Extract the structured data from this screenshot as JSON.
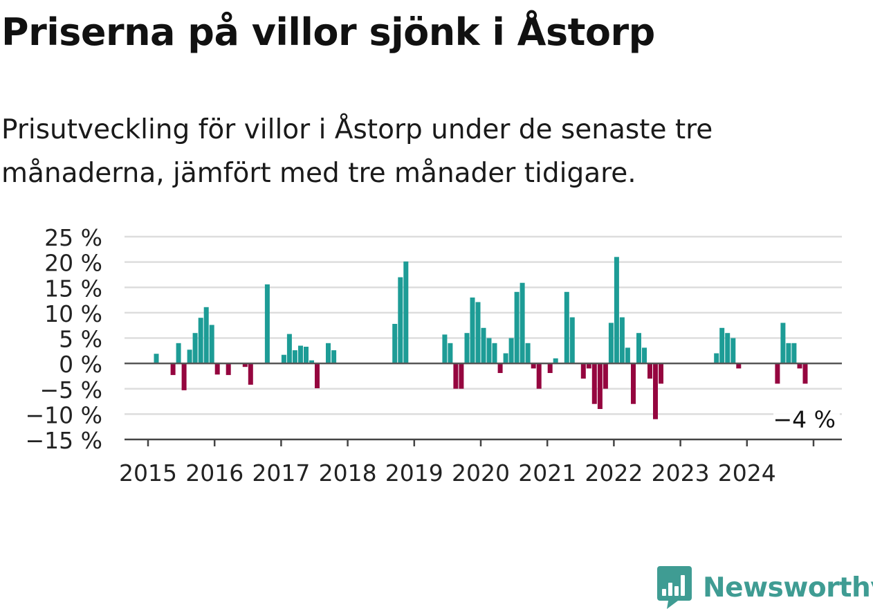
{
  "header": {
    "title": "Priserna på villor sjönk i Åstorp",
    "subtitle": "Prisutveckling för villor i Åstorp under de senaste tre månaderna, jämfört med tre månader tidigare."
  },
  "brand": {
    "name": "Newsworthy",
    "color": "#3f9c93",
    "logo_icon": "bar-chart-speech-bubble-icon"
  },
  "colors": {
    "positive": "#1d9c96",
    "negative": "#95063f",
    "grid": "#dddddd",
    "axis": "#444444",
    "text": "#222222"
  },
  "chart_data": {
    "type": "bar",
    "title": "Priserna på villor sjönk i Åstorp",
    "subtitle": "Prisutveckling för villor i Åstorp under de senaste tre månaderna, jämfört med tre månader tidigare.",
    "xlabel": "",
    "ylabel": "",
    "ylim": [
      -15,
      25
    ],
    "yticks": [
      25,
      20,
      15,
      10,
      5,
      0,
      -5,
      -10,
      -15
    ],
    "ytick_labels": [
      "25 %",
      "20 %",
      "15 %",
      "10 %",
      "5 %",
      "0 %",
      "−5 %",
      "−10 %",
      "−15 %"
    ],
    "xtick_labels": [
      "2015",
      "2016",
      "2017",
      "2018",
      "2019",
      "2020",
      "2021",
      "2022",
      "2023",
      "2024"
    ],
    "x_unit": "month",
    "grid": true,
    "legend": "none",
    "last_value_label": "−4 %",
    "points": [
      {
        "date": "2015-01",
        "value": null
      },
      {
        "date": "2015-02",
        "value": 1.9
      },
      {
        "date": "2015-03",
        "value": null
      },
      {
        "date": "2015-04",
        "value": null
      },
      {
        "date": "2015-05",
        "value": -2.3
      },
      {
        "date": "2015-06",
        "value": 4.0
      },
      {
        "date": "2015-07",
        "value": -5.3
      },
      {
        "date": "2015-08",
        "value": 2.7
      },
      {
        "date": "2015-09",
        "value": 6.0
      },
      {
        "date": "2015-10",
        "value": 9.0
      },
      {
        "date": "2015-11",
        "value": 11.1
      },
      {
        "date": "2015-12",
        "value": 7.6
      },
      {
        "date": "2016-01",
        "value": -2.2
      },
      {
        "date": "2016-02",
        "value": null
      },
      {
        "date": "2016-03",
        "value": -2.3
      },
      {
        "date": "2016-04",
        "value": null
      },
      {
        "date": "2016-05",
        "value": null
      },
      {
        "date": "2016-06",
        "value": -0.7
      },
      {
        "date": "2016-07",
        "value": -4.2
      },
      {
        "date": "2016-08",
        "value": null
      },
      {
        "date": "2016-09",
        "value": null
      },
      {
        "date": "2016-10",
        "value": 15.6
      },
      {
        "date": "2016-11",
        "value": null
      },
      {
        "date": "2016-12",
        "value": null
      },
      {
        "date": "2017-01",
        "value": 1.7
      },
      {
        "date": "2017-02",
        "value": 5.8
      },
      {
        "date": "2017-03",
        "value": 2.6
      },
      {
        "date": "2017-04",
        "value": 3.5
      },
      {
        "date": "2017-05",
        "value": 3.3
      },
      {
        "date": "2017-06",
        "value": 0.6
      },
      {
        "date": "2017-07",
        "value": -4.9
      },
      {
        "date": "2017-08",
        "value": null
      },
      {
        "date": "2017-09",
        "value": 4.0
      },
      {
        "date": "2017-10",
        "value": 2.6
      },
      {
        "date": "2017-11",
        "value": null
      },
      {
        "date": "2017-12",
        "value": null
      },
      {
        "date": "2018-01",
        "value": null
      },
      {
        "date": "2018-02",
        "value": null
      },
      {
        "date": "2018-03",
        "value": null
      },
      {
        "date": "2018-04",
        "value": null
      },
      {
        "date": "2018-05",
        "value": null
      },
      {
        "date": "2018-06",
        "value": null
      },
      {
        "date": "2018-07",
        "value": null
      },
      {
        "date": "2018-08",
        "value": null
      },
      {
        "date": "2018-09",
        "value": 7.8
      },
      {
        "date": "2018-10",
        "value": 17.0
      },
      {
        "date": "2018-11",
        "value": 20.1
      },
      {
        "date": "2018-12",
        "value": null
      },
      {
        "date": "2019-01",
        "value": null
      },
      {
        "date": "2019-02",
        "value": null
      },
      {
        "date": "2019-03",
        "value": null
      },
      {
        "date": "2019-04",
        "value": null
      },
      {
        "date": "2019-05",
        "value": null
      },
      {
        "date": "2019-06",
        "value": 5.7
      },
      {
        "date": "2019-07",
        "value": 4.0
      },
      {
        "date": "2019-08",
        "value": -5.0
      },
      {
        "date": "2019-09",
        "value": -5.0
      },
      {
        "date": "2019-10",
        "value": 6.0
      },
      {
        "date": "2019-11",
        "value": 13.0
      },
      {
        "date": "2019-12",
        "value": 12.1
      },
      {
        "date": "2020-01",
        "value": 7.0
      },
      {
        "date": "2020-02",
        "value": 5.0
      },
      {
        "date": "2020-03",
        "value": 4.0
      },
      {
        "date": "2020-04",
        "value": -1.9
      },
      {
        "date": "2020-05",
        "value": 2.0
      },
      {
        "date": "2020-06",
        "value": 5.0
      },
      {
        "date": "2020-07",
        "value": 14.1
      },
      {
        "date": "2020-08",
        "value": 15.9
      },
      {
        "date": "2020-09",
        "value": 4.0
      },
      {
        "date": "2020-10",
        "value": -1.0
      },
      {
        "date": "2020-11",
        "value": -5.0
      },
      {
        "date": "2020-12",
        "value": null
      },
      {
        "date": "2021-01",
        "value": -1.9
      },
      {
        "date": "2021-02",
        "value": 1.0
      },
      {
        "date": "2021-03",
        "value": null
      },
      {
        "date": "2021-04",
        "value": 14.1
      },
      {
        "date": "2021-05",
        "value": 9.1
      },
      {
        "date": "2021-06",
        "value": null
      },
      {
        "date": "2021-07",
        "value": -3.0
      },
      {
        "date": "2021-08",
        "value": -1.0
      },
      {
        "date": "2021-09",
        "value": -8.0
      },
      {
        "date": "2021-10",
        "value": -9.0
      },
      {
        "date": "2021-11",
        "value": -5.0
      },
      {
        "date": "2021-12",
        "value": 8.0
      },
      {
        "date": "2022-01",
        "value": 21.0
      },
      {
        "date": "2022-02",
        "value": 9.1
      },
      {
        "date": "2022-03",
        "value": 3.1
      },
      {
        "date": "2022-04",
        "value": -8.0
      },
      {
        "date": "2022-05",
        "value": 6.0
      },
      {
        "date": "2022-06",
        "value": 3.1
      },
      {
        "date": "2022-07",
        "value": -3.0
      },
      {
        "date": "2022-08",
        "value": -11.0
      },
      {
        "date": "2022-09",
        "value": -4.0
      },
      {
        "date": "2022-10",
        "value": null
      },
      {
        "date": "2022-11",
        "value": null
      },
      {
        "date": "2022-12",
        "value": null
      },
      {
        "date": "2023-01",
        "value": null
      },
      {
        "date": "2023-02",
        "value": null
      },
      {
        "date": "2023-03",
        "value": null
      },
      {
        "date": "2023-04",
        "value": null
      },
      {
        "date": "2023-05",
        "value": null
      },
      {
        "date": "2023-06",
        "value": null
      },
      {
        "date": "2023-07",
        "value": 2.0
      },
      {
        "date": "2023-08",
        "value": 7.0
      },
      {
        "date": "2023-09",
        "value": 6.0
      },
      {
        "date": "2023-10",
        "value": 5.0
      },
      {
        "date": "2023-11",
        "value": -1.0
      },
      {
        "date": "2023-12",
        "value": null
      },
      {
        "date": "2024-01",
        "value": null
      },
      {
        "date": "2024-02",
        "value": null
      },
      {
        "date": "2024-03",
        "value": null
      },
      {
        "date": "2024-04",
        "value": null
      },
      {
        "date": "2024-05",
        "value": null
      },
      {
        "date": "2024-06",
        "value": -4.0
      },
      {
        "date": "2024-07",
        "value": 8.0
      },
      {
        "date": "2024-08",
        "value": 4.0
      },
      {
        "date": "2024-09",
        "value": 4.0
      },
      {
        "date": "2024-10",
        "value": -1.0
      },
      {
        "date": "2024-11",
        "value": -4.0
      }
    ]
  }
}
